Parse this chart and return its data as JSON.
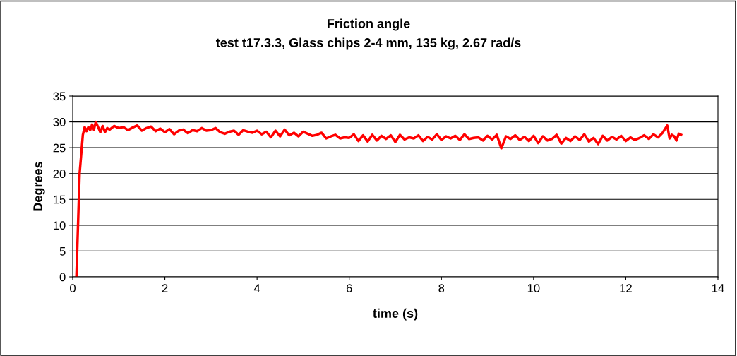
{
  "chart_data": {
    "type": "line",
    "title": "Friction angle",
    "subtitle": "test t17.3.3, Glass chips 2-4 mm, 135 kg, 2.67 rad/s",
    "xlabel": "time (s)",
    "ylabel": "Degrees",
    "series": [
      {
        "color": "#ff0000",
        "x": [
          0.08,
          0.15,
          0.22,
          0.26,
          0.3,
          0.34,
          0.38,
          0.42,
          0.46,
          0.5,
          0.55,
          0.6,
          0.65,
          0.7,
          0.75,
          0.8,
          0.9,
          1.0,
          1.1,
          1.2,
          1.3,
          1.4,
          1.5,
          1.6,
          1.7,
          1.8,
          1.9,
          2.0,
          2.1,
          2.2,
          2.3,
          2.4,
          2.5,
          2.6,
          2.7,
          2.8,
          2.9,
          3.0,
          3.1,
          3.2,
          3.3,
          3.4,
          3.5,
          3.6,
          3.7,
          3.8,
          3.9,
          4.0,
          4.1,
          4.2,
          4.3,
          4.4,
          4.5,
          4.6,
          4.7,
          4.8,
          4.9,
          5.0,
          5.1,
          5.2,
          5.3,
          5.4,
          5.5,
          5.6,
          5.7,
          5.8,
          5.9,
          6.0,
          6.1,
          6.2,
          6.3,
          6.4,
          6.5,
          6.6,
          6.7,
          6.8,
          6.9,
          7.0,
          7.1,
          7.2,
          7.3,
          7.4,
          7.5,
          7.6,
          7.7,
          7.8,
          7.9,
          8.0,
          8.1,
          8.2,
          8.3,
          8.4,
          8.5,
          8.6,
          8.7,
          8.8,
          8.9,
          9.0,
          9.1,
          9.2,
          9.3,
          9.4,
          9.5,
          9.6,
          9.7,
          9.8,
          9.9,
          10.0,
          10.1,
          10.2,
          10.3,
          10.4,
          10.5,
          10.6,
          10.7,
          10.8,
          10.9,
          11.0,
          11.1,
          11.2,
          11.3,
          11.4,
          11.5,
          11.6,
          11.7,
          11.8,
          11.9,
          12.0,
          12.1,
          12.2,
          12.3,
          12.4,
          12.5,
          12.6,
          12.7,
          12.8,
          12.9,
          12.95,
          13.0,
          13.05,
          13.1,
          13.15,
          13.2
        ],
        "values": [
          0,
          20,
          27.5,
          29,
          28.2,
          29,
          28.4,
          29.5,
          28.5,
          30,
          29,
          28,
          29.2,
          28,
          28.8,
          28.5,
          29.2,
          28.8,
          29,
          28.4,
          28.9,
          29.3,
          28.3,
          28.8,
          29.1,
          28.2,
          28.7,
          28,
          28.6,
          27.6,
          28.3,
          28.5,
          27.8,
          28.4,
          28.2,
          28.8,
          28.3,
          28.4,
          28.8,
          28,
          27.7,
          28.1,
          28.3,
          27.5,
          28.4,
          28.1,
          27.9,
          28.3,
          27.6,
          28.1,
          27,
          28.3,
          27.2,
          28.5,
          27.4,
          27.9,
          27.2,
          28.1,
          27.7,
          27.3,
          27.5,
          27.9,
          26.8,
          27.2,
          27.5,
          26.8,
          27,
          26.9,
          27.6,
          26.3,
          27.4,
          26.2,
          27.5,
          26.4,
          27.3,
          26.7,
          27.4,
          26.1,
          27.5,
          26.6,
          27,
          26.8,
          27.4,
          26.3,
          27.1,
          26.6,
          27.6,
          26.5,
          27.2,
          26.8,
          27.3,
          26.5,
          27.6,
          26.7,
          26.9,
          27,
          26.4,
          27.3,
          26.6,
          27.5,
          24.9,
          27.2,
          26.7,
          27.4,
          26.5,
          27.1,
          26.3,
          27.3,
          25.9,
          27.2,
          26.4,
          26.7,
          27.5,
          25.8,
          26.9,
          26.3,
          27.2,
          26.5,
          27.6,
          26.2,
          26.9,
          25.7,
          27.3,
          26.4,
          27.1,
          26.6,
          27.3,
          26.3,
          27,
          26.5,
          26.9,
          27.4,
          26.7,
          27.6,
          27,
          27.9,
          29.3,
          26.8,
          27.5,
          27.2,
          26.4,
          27.7,
          27.5
        ]
      }
    ],
    "xlim": [
      0,
      14
    ],
    "xticks": [
      0,
      2,
      4,
      6,
      8,
      10,
      12,
      14
    ],
    "ylim": [
      0,
      35
    ],
    "yticks": [
      0,
      5,
      10,
      15,
      20,
      25,
      30,
      35
    ],
    "grid": "y",
    "legend": false,
    "marker": "none",
    "line_style": "solid"
  }
}
